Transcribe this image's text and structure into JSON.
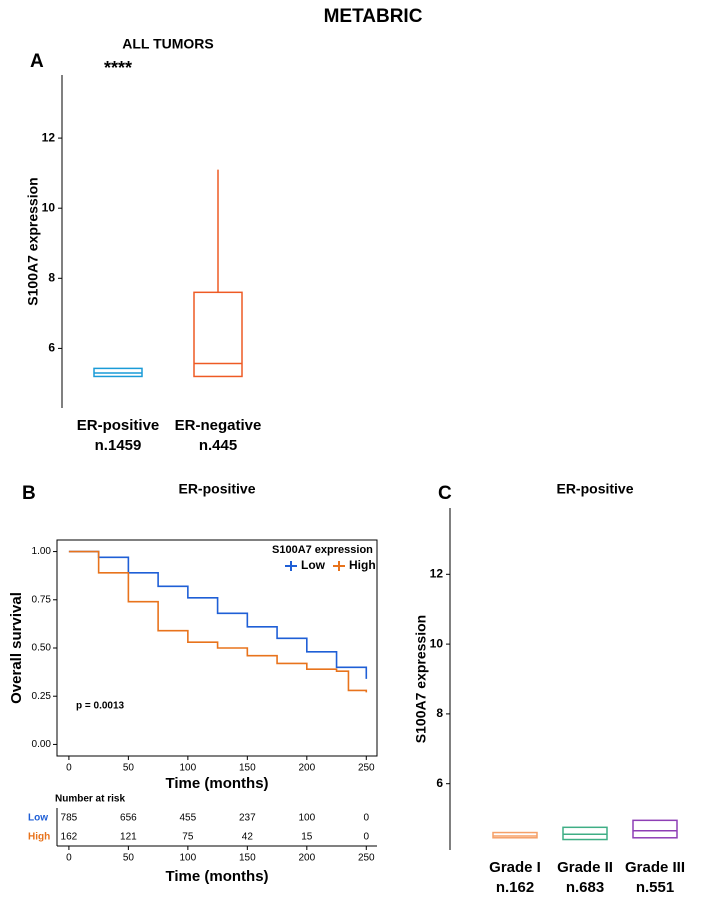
{
  "title": "METABRIC",
  "chart_data": [
    {
      "type": "box",
      "panel": "A",
      "title": "ALL TUMORS",
      "annotation": "****",
      "ylabel": "S100A7 expression",
      "categories": [
        "ER-positive",
        "ER-negative"
      ],
      "counts": [
        "n.1459",
        "n.445"
      ],
      "colors": [
        "#1a9bd7",
        "#ee5a24"
      ],
      "boxes": [
        {
          "q1": 5.2,
          "median": 5.3,
          "q3": 5.43
        },
        {
          "q1": 5.2,
          "median": 5.57,
          "q3": 7.6,
          "high": 11.1
        }
      ],
      "ylim": [
        4.3,
        13.8
      ],
      "yticks": [
        6,
        8,
        10,
        12
      ]
    },
    {
      "type": "km",
      "panel": "B",
      "title": "ER-positive",
      "xlabel": "Time (months)",
      "ylabel": "Overall survival",
      "legend_title": "S100A7 expression",
      "annotation": "p = 0.0013",
      "series": [
        {
          "name": "Low",
          "color": "#1f5fd6",
          "x": [
            0,
            25,
            50,
            75,
            100,
            125,
            150,
            175,
            200,
            225,
            250
          ],
          "values": [
            1.0,
            0.97,
            0.89,
            0.82,
            0.76,
            0.68,
            0.61,
            0.55,
            0.48,
            0.4,
            0.34
          ]
        },
        {
          "name": "High",
          "color": "#e8731c",
          "x": [
            0,
            25,
            50,
            75,
            100,
            125,
            150,
            175,
            200,
            225,
            235,
            250
          ],
          "values": [
            1.0,
            0.89,
            0.74,
            0.59,
            0.53,
            0.5,
            0.46,
            0.42,
            0.39,
            0.38,
            0.28,
            0.27
          ]
        }
      ],
      "xlim": [
        -10,
        259
      ],
      "xticks": [
        0,
        50,
        100,
        150,
        200,
        250
      ],
      "ylim": [
        -0.06,
        1.06
      ],
      "yticks": [
        {
          "value": 0,
          "label": "0.00"
        },
        {
          "value": 0.25,
          "label": "0.25"
        },
        {
          "value": 0.5,
          "label": "0.50"
        },
        {
          "value": 0.75,
          "label": "0.75"
        },
        {
          "value": 1,
          "label": "1.00"
        }
      ],
      "risk_table": {
        "title": "Number at risk",
        "xlabel": "Time (months)",
        "rows": [
          {
            "name": "Low",
            "color": "#1f5fd6",
            "values": [
              785,
              656,
              455,
              237,
              100,
              0
            ]
          },
          {
            "name": "High",
            "color": "#e8731c",
            "values": [
              162,
              121,
              75,
              42,
              15,
              0
            ]
          }
        ]
      }
    },
    {
      "type": "box",
      "panel": "C",
      "title": "ER-positive",
      "ylabel": "S100A7 expression",
      "categories": [
        "Grade I",
        "Grade II",
        "Grade III"
      ],
      "counts": [
        "n.162",
        "n.683",
        "n.551"
      ],
      "colors": [
        "#f5a068",
        "#3fae85",
        "#8e3fb5"
      ],
      "boxes": [
        {
          "q1": 4.45,
          "median": 4.5,
          "q3": 4.6
        },
        {
          "q1": 4.4,
          "median": 4.55,
          "q3": 4.75
        },
        {
          "q1": 4.45,
          "median": 4.65,
          "q3": 4.95
        }
      ],
      "ylim": [
        4.1,
        13.9
      ],
      "yticks": [
        6,
        8,
        10,
        12
      ]
    }
  ]
}
